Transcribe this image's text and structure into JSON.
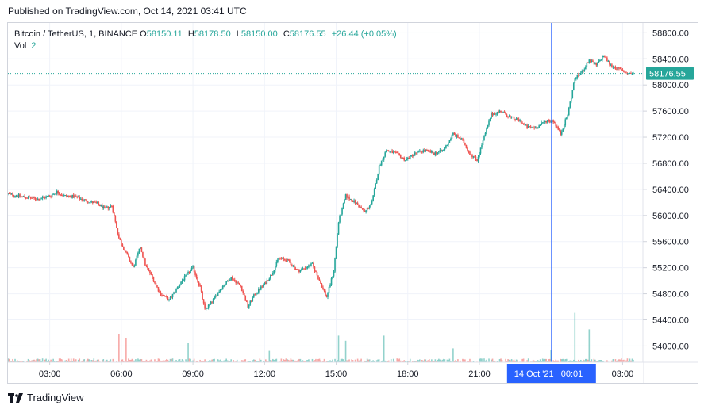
{
  "published": "Published on TradingView.com, Oct 14, 2021 03:41 UTC",
  "legend": {
    "symbol": "Bitcoin / TetherUS, 1, BINANCE",
    "o_label": "O",
    "o_value": "58150.11",
    "h_label": "H",
    "h_value": "58178.50",
    "l_label": "L",
    "l_value": "58150.00",
    "c_label": "C",
    "c_value": "58176.55",
    "change": "+26.44 (+0.05%)",
    "vol_label": "Vol",
    "vol_value": "2"
  },
  "footer": {
    "brand": "TradingView",
    "logo_icon": "tradingview-logo-icon"
  },
  "colors": {
    "up": "#26a69a",
    "down": "#ef5350",
    "crosshair": "#2962ff",
    "price_tag": "#26a69a"
  },
  "chart_data": {
    "type": "candlestick",
    "symbol": "Bitcoin / TetherUS",
    "interval": "1",
    "exchange": "BINANCE",
    "y_ticks": [
      54000,
      54400,
      54800,
      55200,
      55600,
      56000,
      56400,
      56800,
      57200,
      57600,
      58000,
      58400,
      58800
    ],
    "y_tick_labels": [
      "54000.00",
      "54400.00",
      "54800.00",
      "55200.00",
      "55600.00",
      "56000.00",
      "56400.00",
      "56800.00",
      "57200.00",
      "57600.00",
      "58000.00",
      "58400.00",
      "58800.00"
    ],
    "ylim": [
      53750,
      58950
    ],
    "x_ticks": [
      3,
      6,
      9,
      12,
      15,
      18,
      21,
      27
    ],
    "x_tick_labels": [
      "03:00",
      "06:00",
      "09:00",
      "12:00",
      "15:00",
      "18:00",
      "21:00",
      "03:00"
    ],
    "xlim": [
      1.25,
      27.85
    ],
    "last_price": 58176.55,
    "last_price_label": "58176.55",
    "crosshair_time": 24.02,
    "crosshair_label": "14 Oct '21   00:01",
    "price_path": [
      [
        1.25,
        56330
      ],
      [
        2.0,
        56280
      ],
      [
        2.5,
        56250
      ],
      [
        3.0,
        56300
      ],
      [
        3.3,
        56360
      ],
      [
        3.6,
        56300
      ],
      [
        4.0,
        56290
      ],
      [
        4.5,
        56230
      ],
      [
        5.0,
        56180
      ],
      [
        5.3,
        56100
      ],
      [
        5.6,
        56150
      ],
      [
        5.9,
        55650
      ],
      [
        6.2,
        55420
      ],
      [
        6.5,
        55200
      ],
      [
        6.8,
        55520
      ],
      [
        7.0,
        55250
      ],
      [
        7.3,
        55050
      ],
      [
        7.6,
        54820
      ],
      [
        8.0,
        54700
      ],
      [
        8.5,
        54980
      ],
      [
        9.0,
        55200
      ],
      [
        9.3,
        54900
      ],
      [
        9.5,
        54550
      ],
      [
        9.8,
        54680
      ],
      [
        10.2,
        54900
      ],
      [
        10.6,
        55050
      ],
      [
        11.0,
        54920
      ],
      [
        11.3,
        54600
      ],
      [
        11.6,
        54800
      ],
      [
        12.0,
        54950
      ],
      [
        12.3,
        55100
      ],
      [
        12.6,
        55350
      ],
      [
        13.0,
        55300
      ],
      [
        13.4,
        55150
      ],
      [
        13.7,
        55200
      ],
      [
        14.0,
        55250
      ],
      [
        14.3,
        55000
      ],
      [
        14.6,
        54750
      ],
      [
        14.9,
        55150
      ],
      [
        15.1,
        55900
      ],
      [
        15.4,
        56300
      ],
      [
        15.8,
        56200
      ],
      [
        16.2,
        56050
      ],
      [
        16.5,
        56200
      ],
      [
        16.8,
        56750
      ],
      [
        17.1,
        57000
      ],
      [
        17.5,
        56950
      ],
      [
        17.9,
        56850
      ],
      [
        18.3,
        56950
      ],
      [
        18.7,
        57000
      ],
      [
        19.1,
        56950
      ],
      [
        19.5,
        57000
      ],
      [
        19.9,
        57250
      ],
      [
        20.3,
        57150
      ],
      [
        20.6,
        56950
      ],
      [
        20.9,
        56850
      ],
      [
        21.2,
        57200
      ],
      [
        21.5,
        57550
      ],
      [
        21.9,
        57600
      ],
      [
        22.3,
        57500
      ],
      [
        22.7,
        57450
      ],
      [
        23.0,
        57350
      ],
      [
        23.4,
        57350
      ],
      [
        23.8,
        57450
      ],
      [
        24.1,
        57450
      ],
      [
        24.4,
        57250
      ],
      [
        24.7,
        57550
      ],
      [
        25.0,
        58100
      ],
      [
        25.3,
        58200
      ],
      [
        25.6,
        58380
      ],
      [
        25.9,
        58300
      ],
      [
        26.2,
        58450
      ],
      [
        26.5,
        58300
      ],
      [
        26.8,
        58250
      ],
      [
        27.2,
        58180
      ],
      [
        27.5,
        58176
      ]
    ],
    "volume_spikes": [
      [
        5.9,
        0.45
      ],
      [
        6.2,
        0.38
      ],
      [
        8.8,
        0.3
      ],
      [
        12.2,
        0.18
      ],
      [
        15.1,
        0.42
      ],
      [
        15.4,
        0.34
      ],
      [
        17.0,
        0.42
      ],
      [
        19.9,
        0.22
      ],
      [
        24.0,
        0.2
      ],
      [
        25.0,
        0.78
      ],
      [
        25.6,
        0.52
      ]
    ]
  }
}
